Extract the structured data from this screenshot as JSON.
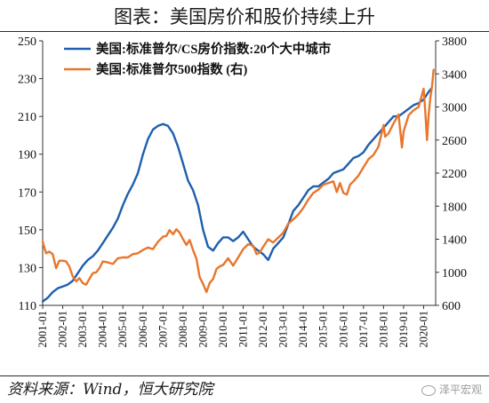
{
  "title": "图表：美国房价和股价持续上升",
  "source": "资料来源：Wind，恒大研究院",
  "watermark": "泽平宏观",
  "chart_data": {
    "type": "line",
    "x_tick_labels": [
      "2001-01",
      "2002-01",
      "2003-01",
      "2004-01",
      "2005-01",
      "2006-01",
      "2007-01",
      "2008-01",
      "2009-01",
      "2010-01",
      "2011-01",
      "2012-01",
      "2013-01",
      "2014-01",
      "2015-01",
      "2016-01",
      "2017-01",
      "2018-01",
      "2019-01",
      "2020-01"
    ],
    "y_left": {
      "ticks": [
        110,
        130,
        150,
        170,
        190,
        210,
        230,
        250
      ],
      "range": [
        110,
        250
      ]
    },
    "y_right": {
      "ticks": [
        600,
        1000,
        1400,
        1800,
        2200,
        2600,
        3000,
        3400,
        3800
      ],
      "range": [
        600,
        3800
      ]
    },
    "legend": {
      "placement": "top-left",
      "entries": [
        "美国:标准普尔/CS房价指数:20个大中城市",
        "美国:标准普尔500指数 (右)"
      ]
    },
    "series": [
      {
        "name": "美国:标准普尔/CS房价指数:20个大中城市",
        "axis": "left",
        "color": "#1f5fad",
        "x": [
          2001.0,
          2001.25,
          2001.5,
          2001.75,
          2002.0,
          2002.25,
          2002.5,
          2002.75,
          2003.0,
          2003.25,
          2003.5,
          2003.75,
          2004.0,
          2004.25,
          2004.5,
          2004.75,
          2005.0,
          2005.25,
          2005.5,
          2005.75,
          2006.0,
          2006.25,
          2006.5,
          2006.75,
          2007.0,
          2007.25,
          2007.5,
          2007.75,
          2008.0,
          2008.25,
          2008.5,
          2008.75,
          2009.0,
          2009.25,
          2009.5,
          2009.75,
          2010.0,
          2010.25,
          2010.5,
          2010.75,
          2011.0,
          2011.25,
          2011.5,
          2011.75,
          2012.0,
          2012.25,
          2012.5,
          2012.75,
          2013.0,
          2013.25,
          2013.5,
          2013.75,
          2014.0,
          2014.25,
          2014.5,
          2014.75,
          2015.0,
          2015.25,
          2015.5,
          2015.75,
          2016.0,
          2016.25,
          2016.5,
          2016.75,
          2017.0,
          2017.25,
          2017.5,
          2017.75,
          2018.0,
          2018.25,
          2018.5,
          2018.75,
          2019.0,
          2019.25,
          2019.5,
          2019.75,
          2020.0,
          2020.25,
          2020.4
        ],
        "values": [
          112,
          114,
          117,
          119,
          120,
          121,
          123,
          127,
          131,
          134,
          136,
          139,
          143,
          147,
          151,
          156,
          163,
          169,
          174,
          180,
          190,
          198,
          203,
          205,
          206,
          205,
          201,
          194,
          185,
          176,
          171,
          163,
          150,
          141,
          139,
          143,
          146,
          146,
          144,
          146,
          149,
          145,
          141,
          139,
          137,
          134,
          140,
          143,
          146,
          153,
          160,
          163,
          167,
          171,
          173,
          173,
          175,
          177,
          180,
          181,
          182,
          185,
          188,
          189,
          191,
          195,
          198,
          201,
          204,
          207,
          210,
          210,
          212,
          214,
          216,
          217,
          219,
          223,
          225
        ]
      },
      {
        "name": "美国:标准普尔500指数 (右)",
        "axis": "right",
        "color": "#e8762c",
        "x": [
          2001.0,
          2001.17,
          2001.33,
          2001.5,
          2001.67,
          2001.83,
          2002.0,
          2002.17,
          2002.33,
          2002.5,
          2002.67,
          2002.83,
          2003.0,
          2003.17,
          2003.33,
          2003.5,
          2003.67,
          2003.83,
          2004.0,
          2004.25,
          2004.5,
          2004.75,
          2005.0,
          2005.25,
          2005.5,
          2005.75,
          2006.0,
          2006.25,
          2006.5,
          2006.75,
          2007.0,
          2007.17,
          2007.33,
          2007.5,
          2007.67,
          2007.83,
          2008.0,
          2008.17,
          2008.33,
          2008.5,
          2008.67,
          2008.83,
          2009.0,
          2009.17,
          2009.33,
          2009.5,
          2009.67,
          2009.83,
          2010.0,
          2010.25,
          2010.5,
          2010.75,
          2011.0,
          2011.25,
          2011.5,
          2011.67,
          2011.83,
          2012.0,
          2012.25,
          2012.5,
          2012.75,
          2013.0,
          2013.25,
          2013.5,
          2013.75,
          2014.0,
          2014.25,
          2014.5,
          2014.75,
          2015.0,
          2015.25,
          2015.5,
          2015.67,
          2015.83,
          2016.0,
          2016.17,
          2016.33,
          2016.5,
          2016.75,
          2017.0,
          2017.25,
          2017.5,
          2017.75,
          2018.0,
          2018.08,
          2018.25,
          2018.5,
          2018.75,
          2018.92,
          2019.0,
          2019.25,
          2019.5,
          2019.75,
          2020.0,
          2020.08,
          2020.17,
          2020.25,
          2020.33,
          2020.42,
          2020.5
        ],
        "values": [
          1370,
          1230,
          1250,
          1220,
          1050,
          1140,
          1140,
          1130,
          1070,
          950,
          890,
          930,
          870,
          850,
          920,
          990,
          1000,
          1050,
          1130,
          1120,
          1100,
          1170,
          1180,
          1180,
          1220,
          1230,
          1270,
          1300,
          1280,
          1370,
          1430,
          1440,
          1510,
          1460,
          1520,
          1480,
          1400,
          1330,
          1390,
          1270,
          1160,
          940,
          860,
          760,
          870,
          920,
          1040,
          1070,
          1090,
          1170,
          1080,
          1180,
          1280,
          1340,
          1320,
          1220,
          1240,
          1310,
          1400,
          1360,
          1420,
          1480,
          1590,
          1640,
          1700,
          1780,
          1880,
          1960,
          2000,
          2060,
          2080,
          2100,
          1970,
          2080,
          1960,
          1940,
          2060,
          2100,
          2170,
          2270,
          2370,
          2420,
          2520,
          2780,
          2640,
          2680,
          2800,
          2910,
          2510,
          2700,
          2900,
          2960,
          3000,
          3220,
          2950,
          2600,
          2900,
          3100,
          3250,
          3450
        ]
      }
    ]
  }
}
